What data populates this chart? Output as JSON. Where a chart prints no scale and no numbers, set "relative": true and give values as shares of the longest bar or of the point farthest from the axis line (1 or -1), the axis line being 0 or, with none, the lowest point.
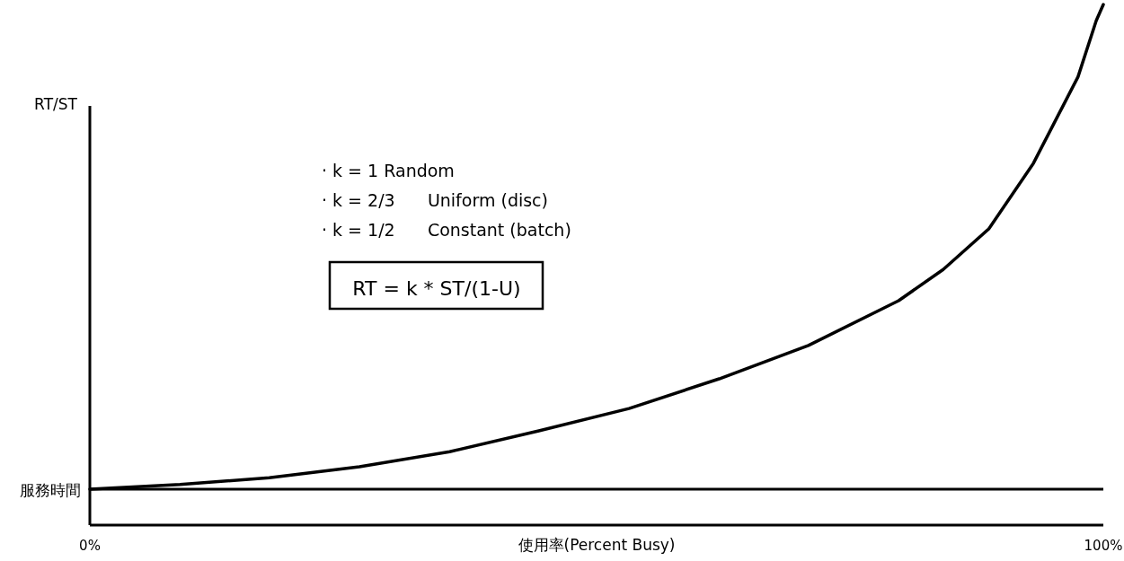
{
  "chart_data": {
    "type": "line",
    "relative": true,
    "xlabel": "使用率(Percent Busy)",
    "ylabel": "RT/ST",
    "xlim": [
      0,
      100
    ],
    "xticks": [
      {
        "value": 0,
        "label": "0%"
      },
      {
        "value": 100,
        "label": "100%"
      }
    ],
    "series": [
      {
        "color": "#000000",
        "x": [
          0,
          8.9,
          17.7,
          26.6,
          35.5,
          44.3,
          53.2,
          62.1,
          70.9,
          79.8,
          84.2,
          88.7,
          93.1,
          97.5,
          99.3,
          100
        ],
        "values": [
          0.069,
          0.078,
          0.091,
          0.112,
          0.141,
          0.181,
          0.224,
          0.281,
          0.345,
          0.431,
          0.491,
          0.569,
          0.695,
          0.861,
          0.969,
          1
        ]
      }
    ],
    "ref_lines": [
      {
        "axis": "y",
        "value": 0.069,
        "label": "服務時間",
        "color": "#000000"
      }
    ],
    "annotations": [
      "· k = 1 Random",
      "· k = 2/3      Uniform (disc)",
      "· k = 1/2      Constant (batch)",
      "RT = k * ST/(1-U)"
    ]
  }
}
